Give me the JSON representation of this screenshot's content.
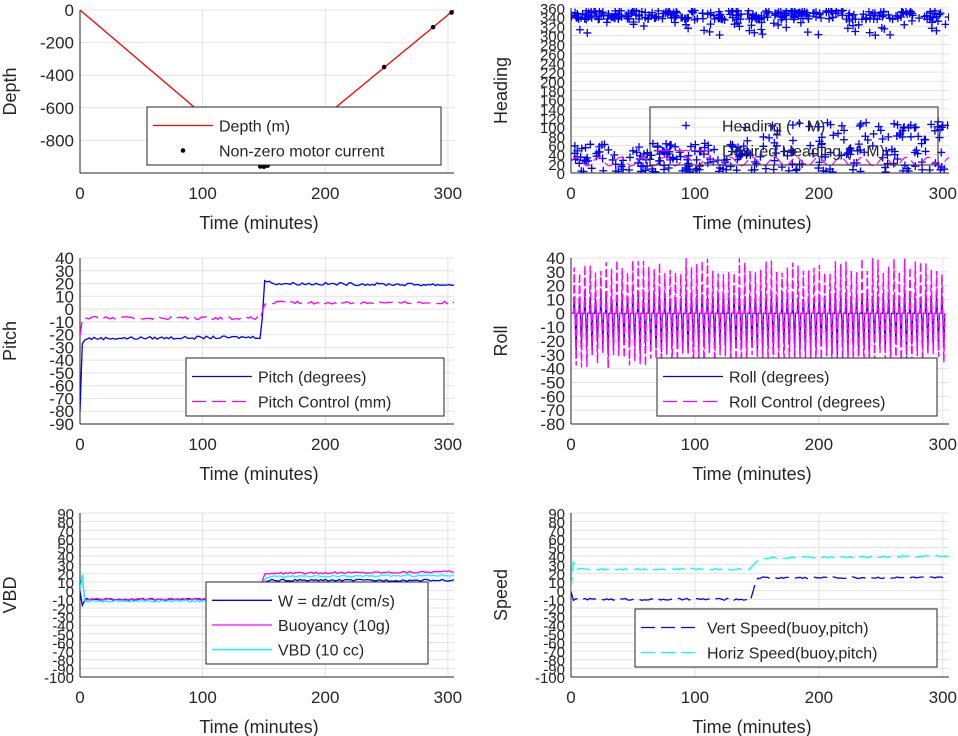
{
  "colors": {
    "grid": "#e3e3e3",
    "axis": "#262626",
    "depth": "#ff0000",
    "blue": "#0000ff",
    "magenta": "#ff00ff",
    "cyan": "#00ffff",
    "marker": "#000000"
  },
  "chart_data": [
    {
      "type": "line",
      "ylabel": "Depth",
      "xlabel": "Time (minutes)",
      "xlim": [
        0,
        305
      ],
      "ylim": [
        -1000,
        0
      ],
      "xticks": [
        "0",
        "100",
        "200",
        "300"
      ],
      "yticks": [
        "0",
        "-200",
        "-400",
        "-600",
        "-800"
      ],
      "grid": true,
      "legend_position": "lower-center",
      "series": [
        {
          "name": "Depth (m)",
          "style": "solid",
          "color": "#ff0000",
          "x": [
            0,
            150,
            305
          ],
          "y": [
            0,
            -960,
            0
          ]
        },
        {
          "name": "Non-zero motor current",
          "style": "dot",
          "color": "#000000",
          "x": [
            147,
            150,
            153,
            248,
            288,
            303
          ],
          "y": [
            -960,
            -962,
            -955,
            -350,
            -105,
            -15
          ]
        }
      ]
    },
    {
      "type": "scatter",
      "ylabel": "Heading",
      "xlabel": "Time (minutes)",
      "xlim": [
        0,
        305
      ],
      "ylim": [
        0,
        360
      ],
      "xticks": [
        "0",
        "100",
        "200",
        "300"
      ],
      "yticks": [
        "0",
        "20",
        "40",
        "60",
        "80",
        "100",
        "120",
        "140",
        "160",
        "180",
        "200",
        "220",
        "240",
        "260",
        "280",
        "300",
        "320",
        "340",
        "360"
      ],
      "grid": true,
      "legend_position": "lower-right",
      "series": [
        {
          "name": "Heading ( ° M)",
          "marker": "+",
          "color": "#0000ff"
        },
        {
          "name": "Desired Heading ( ° M)",
          "style": "dashed",
          "color": "#ff00ff"
        }
      ]
    },
    {
      "type": "line",
      "ylabel": "Pitch",
      "xlabel": "Time (minutes)",
      "xlim": [
        0,
        305
      ],
      "ylim": [
        -90,
        40
      ],
      "xticks": [
        "0",
        "100",
        "200",
        "300"
      ],
      "yticks": [
        "40",
        "30",
        "20",
        "10",
        "0",
        "-10",
        "-20",
        "-30",
        "-40",
        "-50",
        "-60",
        "-70",
        "-80",
        "-90"
      ],
      "grid": true,
      "legend_position": "lower-right",
      "series": [
        {
          "name": "Pitch (degrees)",
          "style": "solid",
          "color": "#0000ff",
          "x": [
            0,
            2,
            5,
            148,
            150,
            160,
            305
          ],
          "y": [
            -80,
            -25,
            -23,
            -22,
            22,
            20,
            19
          ]
        },
        {
          "name": "Pitch Control (mm)",
          "style": "dashed",
          "color": "#ff00ff",
          "x": [
            0,
            2,
            5,
            148,
            150,
            160,
            305
          ],
          "y": [
            -20,
            -8,
            -7,
            -7,
            4,
            5,
            5
          ]
        }
      ]
    },
    {
      "type": "line",
      "ylabel": "Roll",
      "xlabel": "Time (minutes)",
      "xlim": [
        0,
        305
      ],
      "ylim": [
        -80,
        40
      ],
      "xticks": [
        "0",
        "100",
        "200",
        "300"
      ],
      "yticks": [
        "40",
        "30",
        "20",
        "10",
        "0",
        "-10",
        "-20",
        "-30",
        "-40",
        "-50",
        "-60",
        "-70",
        "-80"
      ],
      "grid": true,
      "legend_position": "lower-right",
      "series": [
        {
          "name": "Roll (degrees)",
          "style": "solid",
          "color": "#0000ff",
          "baseline": 0,
          "spike_range": [
            -30,
            15
          ]
        },
        {
          "name": "Roll Control (degrees)",
          "style": "dashed",
          "color": "#ff00ff",
          "baseline": 0,
          "spike_range": [
            -40,
            40
          ]
        }
      ]
    },
    {
      "type": "line",
      "ylabel": "VBD",
      "xlabel": "Time (minutes)",
      "xlim": [
        0,
        305
      ],
      "ylim": [
        -100,
        90
      ],
      "xticks": [
        "0",
        "100",
        "200",
        "300"
      ],
      "yticks": [
        "90",
        "80",
        "70",
        "60",
        "50",
        "40",
        "30",
        "20",
        "10",
        "0",
        "-10",
        "-20",
        "-30",
        "-40",
        "-50",
        "-60",
        "-70",
        "-80",
        "-90",
        "-100"
      ],
      "grid": true,
      "legend_position": "lower-right",
      "series": [
        {
          "name": "W = dz/dt (cm/s)",
          "style": "solid",
          "color": "#0000ff",
          "x": [
            0,
            1,
            2,
            4,
            145,
            150,
            155,
            305
          ],
          "y": [
            0,
            50,
            -25,
            -10,
            -10,
            8,
            12,
            12
          ]
        },
        {
          "name": "Buoyancy (10g)",
          "style": "solid",
          "color": "#ff00ff",
          "x": [
            0,
            1,
            3,
            145,
            150,
            155,
            305
          ],
          "y": [
            0,
            40,
            -10,
            -10,
            18,
            20,
            22
          ]
        },
        {
          "name": "VBD (10 cc)",
          "style": "solid",
          "color": "#00ffff",
          "x": [
            0,
            1,
            3,
            145,
            150,
            155,
            305
          ],
          "y": [
            0,
            45,
            -12,
            -12,
            14,
            16,
            18
          ]
        }
      ]
    },
    {
      "type": "line",
      "ylabel": "Speed",
      "xlabel": "Time (minutes)",
      "xlim": [
        0,
        305
      ],
      "ylim": [
        -100,
        90
      ],
      "xticks": [
        "0",
        "100",
        "200",
        "300"
      ],
      "yticks": [
        "90",
        "80",
        "70",
        "60",
        "50",
        "40",
        "30",
        "20",
        "10",
        "0",
        "-10",
        "-20",
        "-30",
        "-40",
        "-50",
        "-60",
        "-70",
        "-80",
        "-90",
        "-100"
      ],
      "grid": true,
      "legend_position": "lower-right",
      "series": [
        {
          "name": "Vert Speed(buoy,pitch)",
          "style": "dashed",
          "color": "#0000ff",
          "x": [
            0,
            1,
            2,
            145,
            150,
            160,
            305
          ],
          "y": [
            0,
            -35,
            -10,
            -10,
            15,
            15,
            15
          ]
        },
        {
          "name": "Horiz Speed(buoy,pitch)",
          "style": "dashed",
          "color": "#00ffff",
          "x": [
            0,
            1,
            3,
            145,
            150,
            160,
            305
          ],
          "y": [
            0,
            40,
            25,
            25,
            35,
            38,
            40
          ]
        }
      ]
    }
  ]
}
